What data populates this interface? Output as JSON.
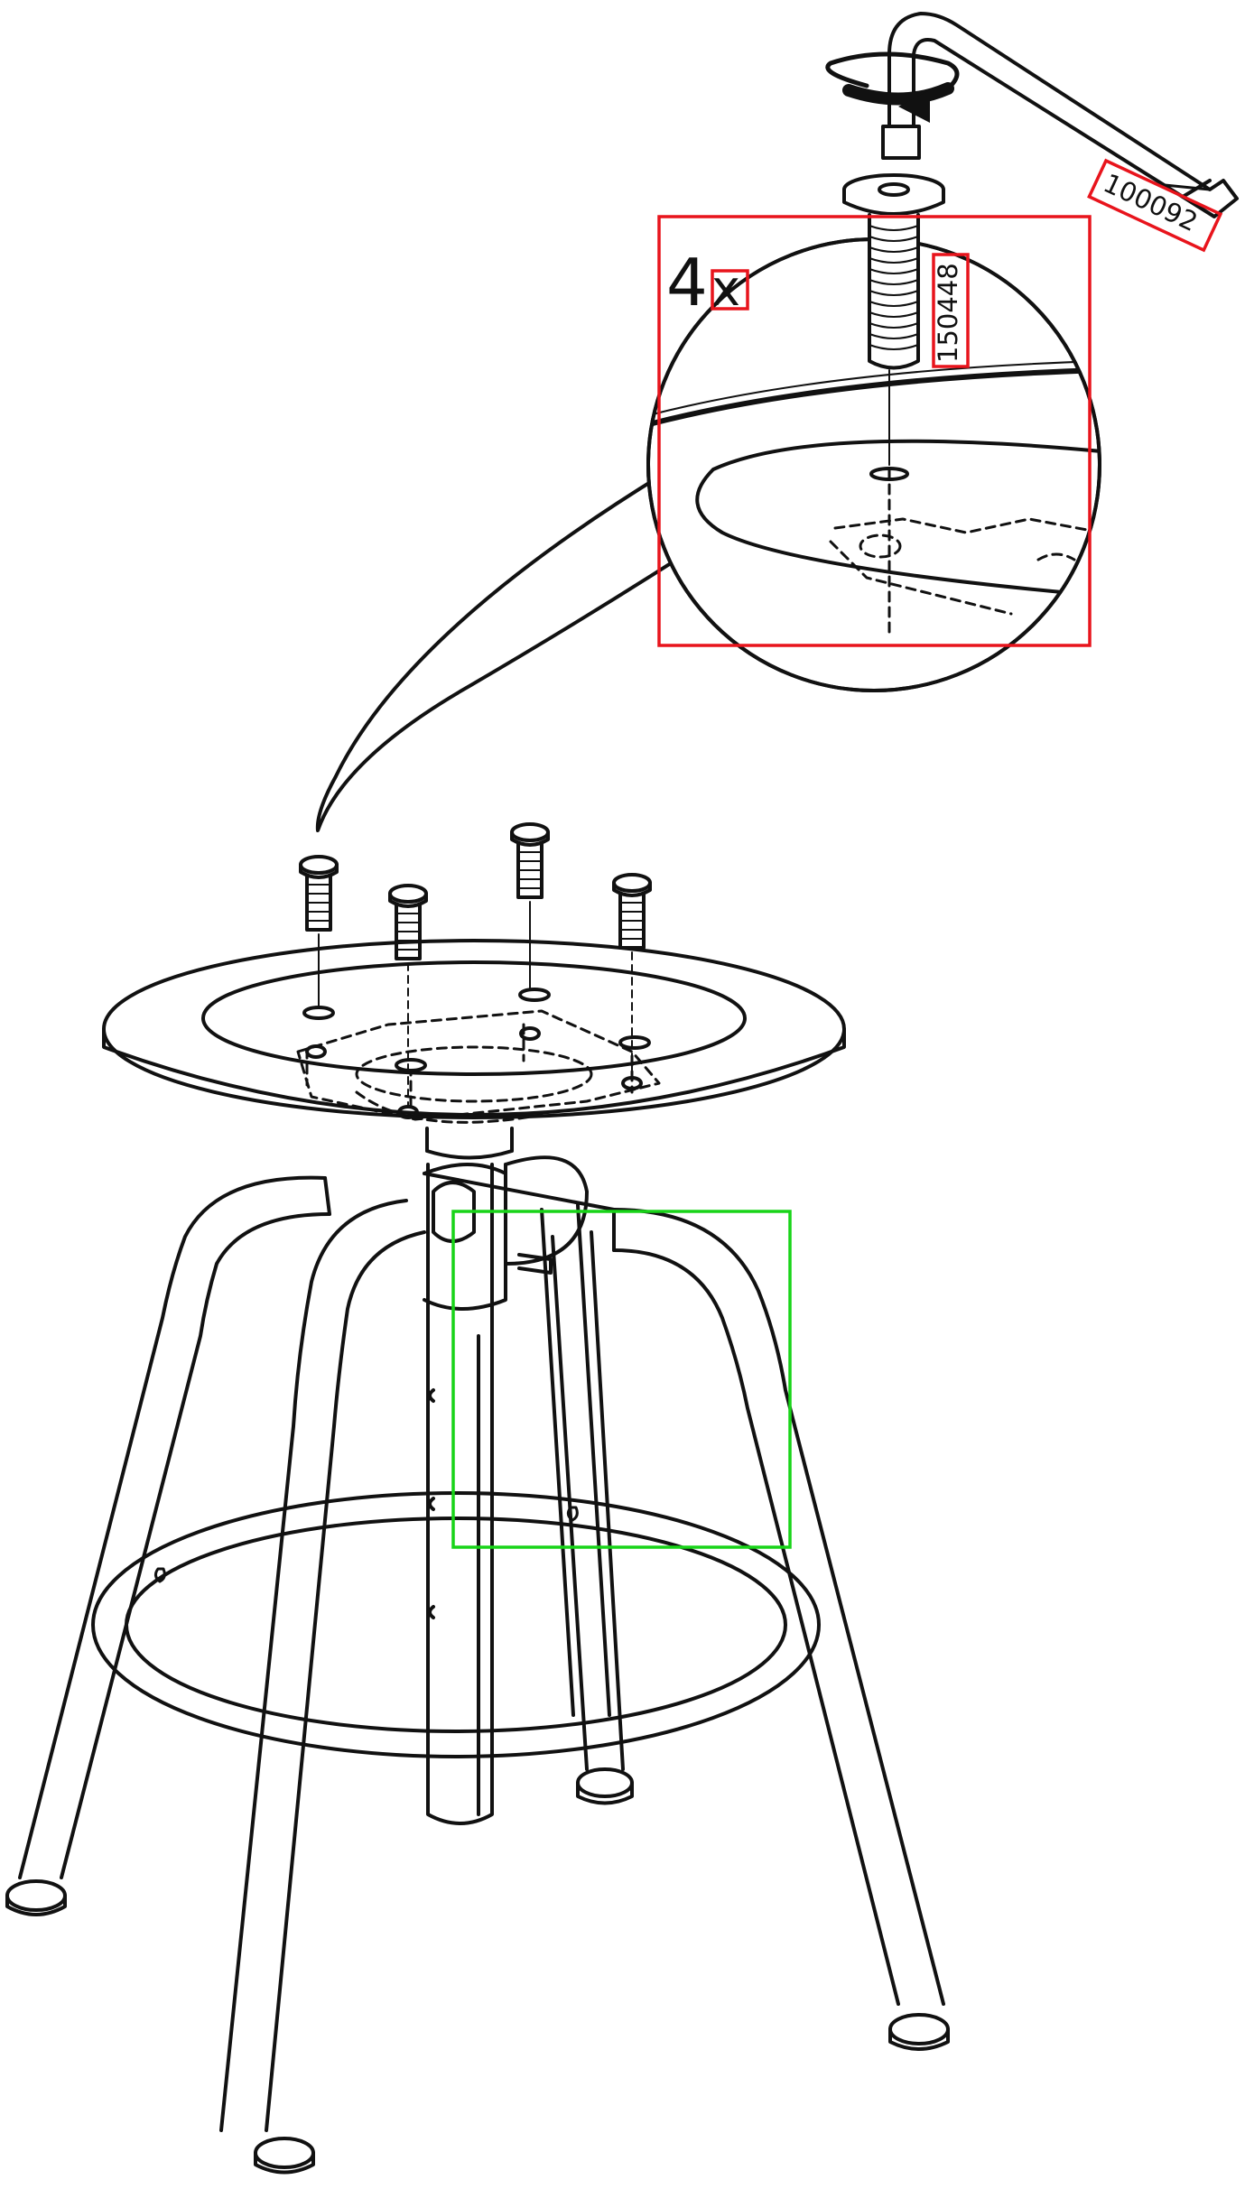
{
  "diagram": {
    "quantity": "4",
    "quantity_suffix": "x",
    "part_number": "150448",
    "tool_number": "100092"
  },
  "colors": {
    "line": "#111111",
    "highlight_red": "#e8141c",
    "highlight_green": "#18d418",
    "background": "#ffffff"
  },
  "icons": {
    "tool": "allen-key-icon",
    "rotation": "rotate-arrow-icon",
    "screw": "screw-icon"
  }
}
